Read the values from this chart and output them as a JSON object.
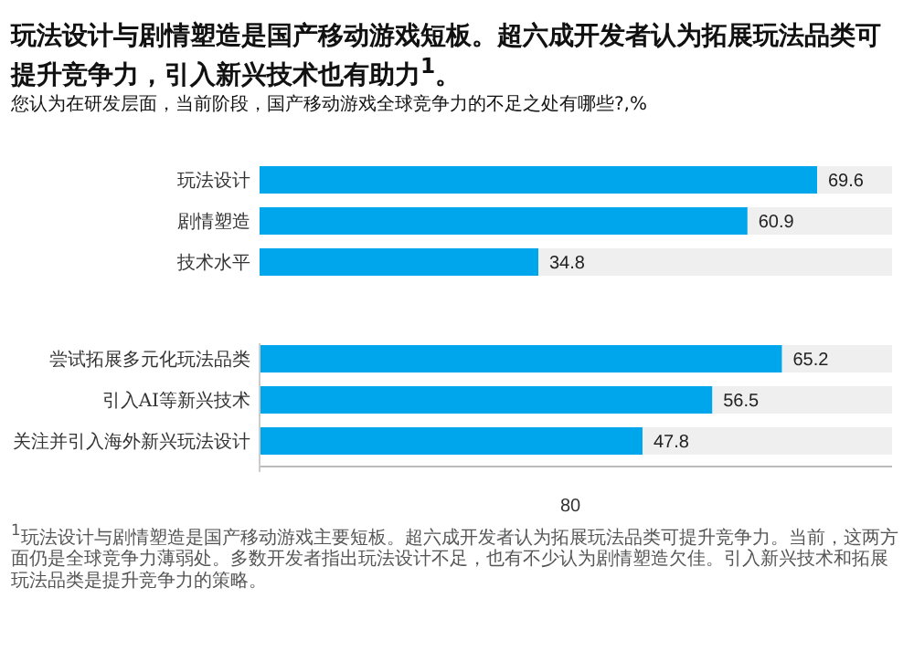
{
  "chart_data": [
    {
      "type": "bar",
      "orientation": "horizontal",
      "title": "玩法设计与剧情塑造是国产移动游戏短板。超六成开发者认为拓展玩法品类可提升竞争力，引入新兴技术也有助力$^{1}$。",
      "subtitle": "您认为在研发层面，当前阶段，国产移动游戏全球竞争力的不足之处有哪些?,%",
      "categories": [
        "玩法设计",
        "剧情塑造",
        "技术水平"
      ],
      "values": [
        69.6,
        60.9,
        34.8
      ],
      "color": "#00a6ec",
      "data_labels": true
    },
    {
      "type": "bar",
      "orientation": "horizontal",
      "xlabel": "80",
      "categories": [
        "尝试拓展多元化玩法品类",
        "引入AI等新兴技术",
        "关注并引入海外新兴玩法设计"
      ],
      "values": [
        65.2,
        56.5,
        47.8
      ],
      "color": "#00a6ec",
      "data_labels": true,
      "annotations": [
        "$^{1}$玩法设计与剧情塑造是国产移动游戏主要短板。超六成开发者认为拓展玩法品类可提升竞争力。当前，这两方面仍是全球竞争力薄弱处。多数开发者指出玩法设计不足，也有不少认为剧情塑造欠佳。引入新兴技术和拓展玩法品类是提升竞争力的策略。"
      ]
    }
  ]
}
